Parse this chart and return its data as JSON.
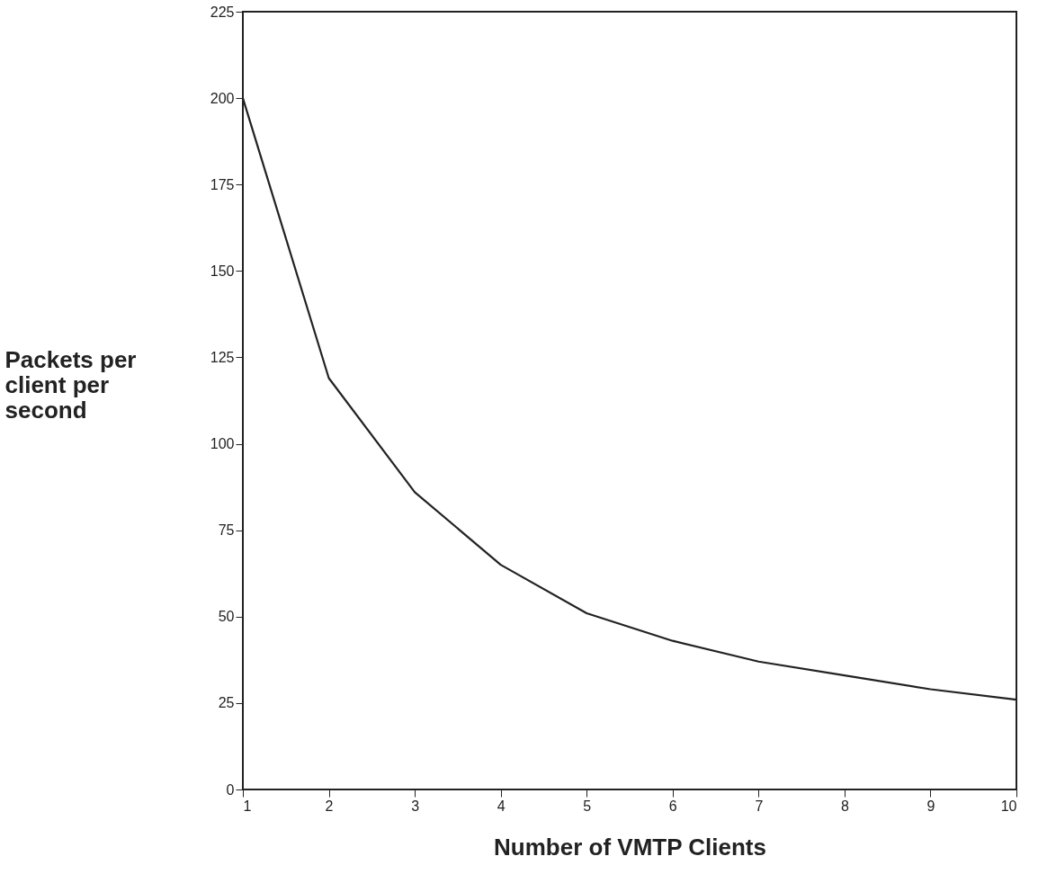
{
  "chart_data": {
    "type": "line",
    "xlabel": "Number of VMTP Clients",
    "ylabel": "Packets per client per second",
    "x": [
      1,
      2,
      3,
      4,
      5,
      6,
      7,
      8,
      9,
      10
    ],
    "series": [
      {
        "color": "#222222",
        "values": [
          200,
          119,
          86,
          65,
          51,
          43,
          37,
          33,
          29,
          26
        ]
      }
    ],
    "xlim": [
      1,
      10
    ],
    "xticks": [
      1,
      2,
      3,
      4,
      5,
      6,
      7,
      8,
      9,
      10
    ],
    "ylim": [
      0,
      225
    ],
    "yticks": [
      0,
      25,
      50,
      75,
      100,
      125,
      150,
      175,
      200,
      225
    ],
    "grid": false,
    "marker": "none",
    "line_style": "solid",
    "legend": false
  }
}
